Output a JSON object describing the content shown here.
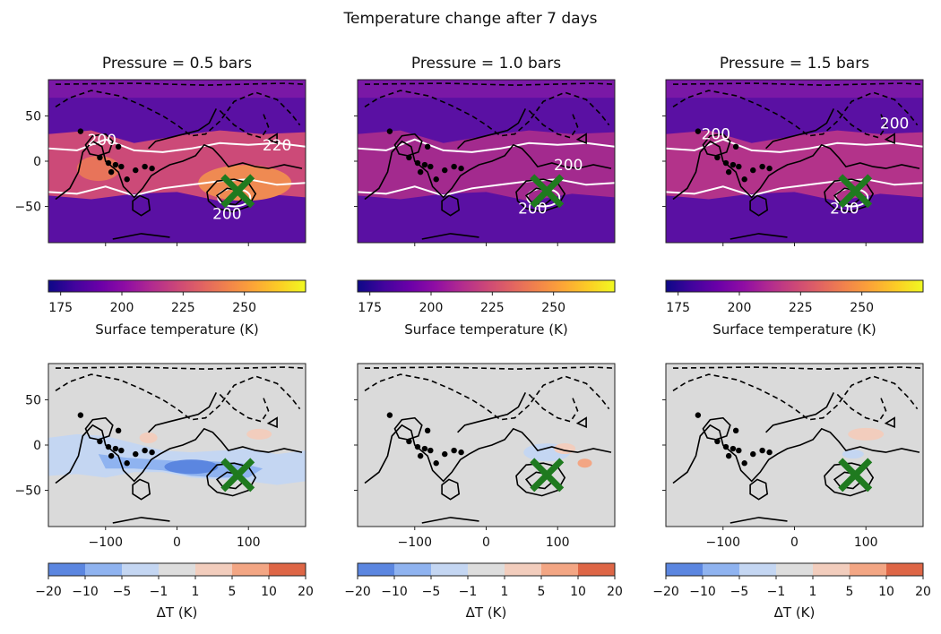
{
  "title": "Temperature change after 7 days",
  "colors": {
    "plasma_stops": [
      "#0d0887",
      "#41049d",
      "#6a00a8",
      "#8f0da4",
      "#b12a90",
      "#cc4778",
      "#e16462",
      "#f2844b",
      "#fca636",
      "#fcce25",
      "#f0f921"
    ],
    "delta_stops": [
      "#5b86e0",
      "#8fb3f0",
      "#c4d6f2",
      "#dddddd",
      "#f2cdbd",
      "#f3a684",
      "#de6646"
    ],
    "land_gray": "#dadada",
    "marker": "#1f7a1f"
  },
  "chart_data": [
    {
      "type": "heatmap",
      "title": "Pressure = 0.5 bars",
      "row": "top",
      "xlim": [
        -180,
        180
      ],
      "ylim": [
        -90,
        90
      ],
      "yticks": [
        50,
        0,
        -50
      ],
      "contour_labels": [
        "200",
        "220",
        "200"
      ],
      "marker": {
        "x": 85,
        "y": -33
      }
    },
    {
      "type": "heatmap",
      "title": "Pressure = 1.0 bars",
      "row": "top",
      "xlim": [
        -180,
        180
      ],
      "ylim": [
        -90,
        90
      ],
      "yticks": [],
      "contour_labels": [
        "200",
        "200"
      ],
      "marker": {
        "x": 85,
        "y": -33
      }
    },
    {
      "type": "heatmap",
      "title": "Pressure = 1.5 bars",
      "row": "top",
      "xlim": [
        -180,
        180
      ],
      "ylim": [
        -90,
        90
      ],
      "yticks": [],
      "contour_labels": [
        "200",
        "200",
        "200"
      ],
      "marker": {
        "x": 85,
        "y": -33
      }
    },
    {
      "type": "heatmap",
      "title": "",
      "row": "bottom",
      "xlim": [
        -180,
        180
      ],
      "ylim": [
        -90,
        90
      ],
      "yticks": [
        50,
        0,
        -50
      ],
      "xticks": [
        -100,
        0,
        100
      ],
      "marker": {
        "x": 85,
        "y": -33
      }
    },
    {
      "type": "heatmap",
      "title": "",
      "row": "bottom",
      "xlim": [
        -180,
        180
      ],
      "ylim": [
        -90,
        90
      ],
      "yticks": [],
      "xticks": [
        -100,
        0,
        100
      ],
      "marker": {
        "x": 85,
        "y": -33
      }
    },
    {
      "type": "heatmap",
      "title": "",
      "row": "bottom",
      "xlim": [
        -180,
        180
      ],
      "ylim": [
        -90,
        90
      ],
      "yticks": [],
      "xticks": [
        -100,
        0,
        100
      ],
      "marker": {
        "x": 85,
        "y": -33
      }
    }
  ],
  "colorbar_temperature": {
    "label": "Surface temperature (K)",
    "ticks": [
      "175",
      "200",
      "225",
      "250"
    ],
    "range": [
      170,
      275
    ],
    "tick_values": [
      175,
      200,
      225,
      250
    ]
  },
  "colorbar_delta": {
    "label": "ΔT (K)",
    "ticks": [
      "−20",
      "−10",
      "−5",
      "−1",
      "1",
      "5",
      "10",
      "20"
    ]
  }
}
